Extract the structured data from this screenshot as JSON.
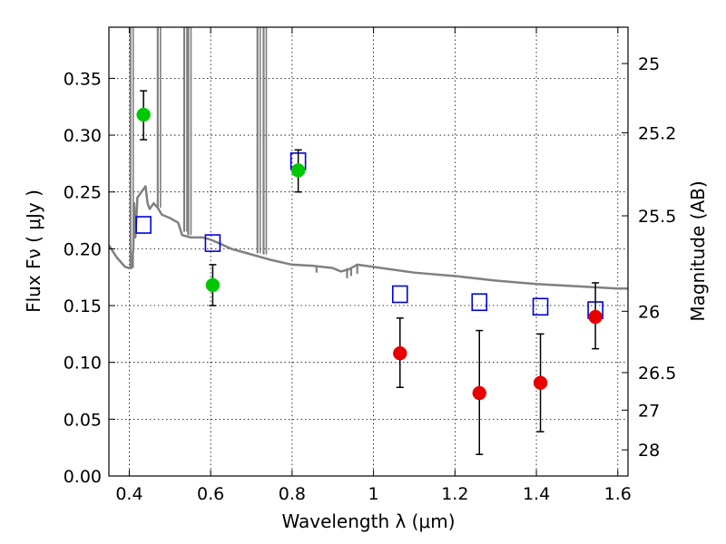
{
  "chart_data": {
    "type": "scatter",
    "title": "",
    "xlabel": "Wavelength  λ (μm)",
    "ylabel": "Flux  Fν  ( μJy )",
    "ylabel_right": "Magnitude (AB)",
    "xlim": [
      0.35,
      1.625
    ],
    "ylim": [
      0.0,
      0.395
    ],
    "grid": true,
    "x_ticks": [
      0.4,
      0.6,
      0.8,
      1.0,
      1.2,
      1.4,
      1.6
    ],
    "x_tick_labels": [
      "0.4",
      "0.6",
      "0.8",
      "1",
      "1.2",
      "1.4",
      "1.6"
    ],
    "y_ticks": [
      0.0,
      0.05,
      0.1,
      0.15,
      0.2,
      0.25,
      0.3,
      0.35
    ],
    "y_tick_labels": [
      "0.00",
      "0.05",
      "0.10",
      "0.15",
      "0.20",
      "0.25",
      "0.30",
      "0.35"
    ],
    "right_ticks": [
      {
        "flux": 0.363,
        "label": "25"
      },
      {
        "flux": 0.302,
        "label": "25.2"
      },
      {
        "flux": 0.229,
        "label": "25.5"
      },
      {
        "flux": 0.145,
        "label": "26"
      },
      {
        "flux": 0.091,
        "label": "26.5"
      },
      {
        "flux": 0.058,
        "label": "27"
      },
      {
        "flux": 0.023,
        "label": "28"
      }
    ],
    "series": [
      {
        "name": "green measurements",
        "marker": "filled-circle",
        "color": "#00c800",
        "x": [
          0.435,
          0.605,
          0.815
        ],
        "y": [
          0.318,
          0.168,
          0.269
        ],
        "yerr": [
          [
            0.022,
            0.018,
            0.019
          ],
          [
            0.021,
            0.018,
            0.018
          ]
        ]
      },
      {
        "name": "red measurements",
        "marker": "filled-circle",
        "color": "#e80000",
        "x": [
          1.065,
          1.26,
          1.41,
          1.545
        ],
        "y": [
          0.108,
          0.073,
          0.082,
          0.14
        ],
        "yerr": [
          [
            0.03,
            0.054,
            0.043,
            0.028
          ],
          [
            0.031,
            0.055,
            0.043,
            0.03
          ]
        ]
      },
      {
        "name": "model photometry",
        "marker": "open-square",
        "color": "#0000dc",
        "x": [
          0.435,
          0.605,
          0.815,
          1.065,
          1.26,
          1.41,
          1.545
        ],
        "y": [
          0.221,
          0.205,
          0.277,
          0.16,
          0.153,
          0.149,
          0.146
        ]
      },
      {
        "name": "model spectrum",
        "type": "line",
        "color": "#808080",
        "x": [
          0.35,
          0.37,
          0.39,
          0.4,
          0.405,
          0.41,
          0.412,
          0.415,
          0.42,
          0.43,
          0.44,
          0.445,
          0.45,
          0.46,
          0.47,
          0.48,
          0.5,
          0.52,
          0.53,
          0.55,
          0.58,
          0.6,
          0.62,
          0.65,
          0.7,
          0.75,
          0.8,
          0.85,
          0.9,
          0.92,
          0.94,
          0.96,
          1.0,
          1.1,
          1.2,
          1.3,
          1.4,
          1.5,
          1.6,
          1.625
        ],
        "y": [
          0.203,
          0.192,
          0.184,
          0.183,
          0.183,
          0.2,
          0.24,
          0.21,
          0.245,
          0.25,
          0.255,
          0.24,
          0.235,
          0.24,
          0.236,
          0.23,
          0.227,
          0.223,
          0.212,
          0.21,
          0.21,
          0.208,
          0.205,
          0.2,
          0.195,
          0.19,
          0.186,
          0.185,
          0.183,
          0.18,
          0.182,
          0.186,
          0.184,
          0.179,
          0.176,
          0.172,
          0.169,
          0.167,
          0.165,
          0.165
        ]
      },
      {
        "name": "spectrum emission spikes",
        "type": "vlines",
        "color": "#808080",
        "x": [
          0.403,
          0.47,
          0.535,
          0.545,
          0.715,
          0.73
        ],
        "y_base": [
          0.183,
          0.236,
          0.215,
          0.212,
          0.196,
          0.195
        ]
      },
      {
        "name": "spectrum absorption features",
        "type": "vlines",
        "color": "#808080",
        "x": [
          0.86,
          0.935,
          0.945,
          0.96
        ],
        "y_base": [
          0.185,
          0.183,
          0.183,
          0.186
        ],
        "y_low": [
          0.179,
          0.174,
          0.176,
          0.178
        ]
      }
    ]
  }
}
